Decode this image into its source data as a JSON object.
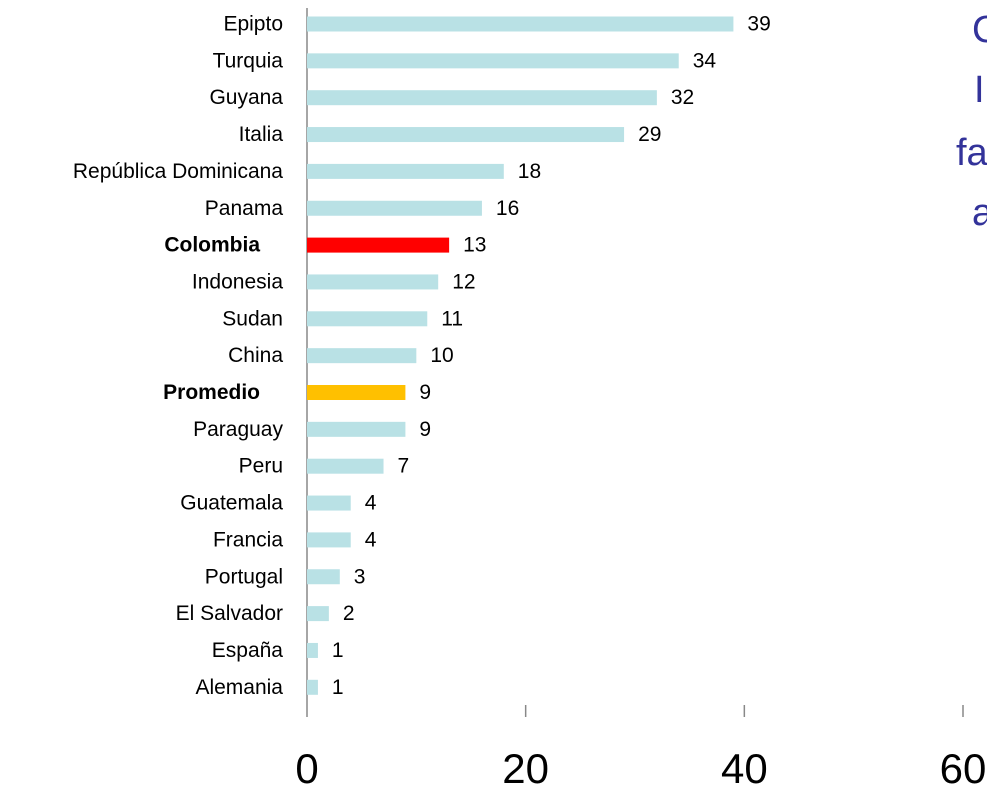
{
  "chart_data": {
    "type": "barh",
    "categories": [
      "Epipto",
      "Turquia",
      "Guyana",
      "Italia",
      "República Dominicana",
      "Panama",
      "Colombia",
      "Indonesia",
      "Sudan",
      "China",
      "Promedio",
      "Paraguay",
      "Peru",
      "Guatemala",
      "Francia",
      "Portugal",
      "El Salvador",
      "España",
      "Alemania"
    ],
    "values": [
      39,
      34,
      32,
      29,
      18,
      16,
      13,
      12,
      11,
      10,
      9,
      9,
      7,
      4,
      4,
      3,
      2,
      1,
      1
    ],
    "colors": [
      "#b9e1e5",
      "#b9e1e5",
      "#b9e1e5",
      "#b9e1e5",
      "#b9e1e5",
      "#b9e1e5",
      "#ff0000",
      "#b9e1e5",
      "#b9e1e5",
      "#b9e1e5",
      "#ffc000",
      "#b9e1e5",
      "#b9e1e5",
      "#b9e1e5",
      "#b9e1e5",
      "#b9e1e5",
      "#b9e1e5",
      "#b9e1e5",
      "#b9e1e5"
    ],
    "bold": [
      false,
      false,
      false,
      false,
      false,
      false,
      true,
      false,
      false,
      false,
      true,
      false,
      false,
      false,
      false,
      false,
      false,
      false,
      false
    ],
    "xlim": [
      0,
      60
    ],
    "xticks": [
      0,
      20,
      40,
      60
    ],
    "annotations": [
      "C",
      "I",
      "fa",
      "a"
    ]
  }
}
